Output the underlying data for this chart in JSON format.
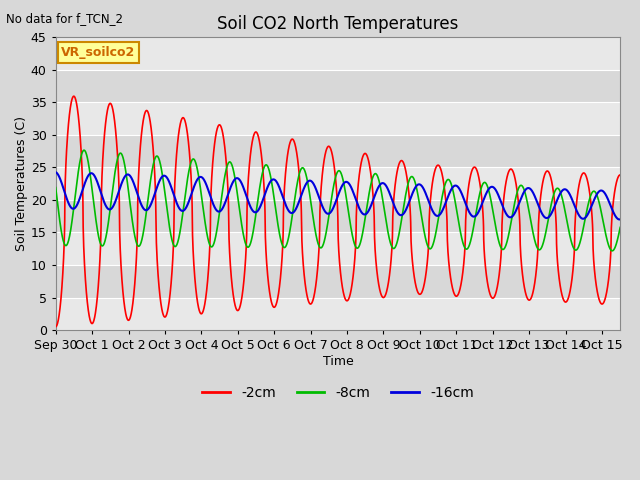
{
  "title": "Soil CO2 North Temperatures",
  "subtitle": "No data for f_TCN_2",
  "xlabel": "Time",
  "ylabel": "Soil Temperatures (C)",
  "ylim": [
    0,
    45
  ],
  "background_color": "#d8d8d8",
  "plot_bg_color": "#e8e8e8",
  "legend_entries": [
    "-2cm",
    "-8cm",
    "-16cm"
  ],
  "legend_colors": [
    "#ff0000",
    "#00bb00",
    "#0000dd"
  ],
  "annotation_box": "VR_soilco2",
  "x_tick_labels": [
    "Sep 30",
    "Oct 1",
    "Oct 2",
    "Oct 3",
    "Oct 4",
    "Oct 5",
    "Oct 6",
    "Oct 7",
    "Oct 8",
    "Oct 9",
    "Oct 10",
    "Oct 11",
    "Oct 12",
    "Oct 13",
    "Oct 14",
    "Oct 15"
  ],
  "yticks": [
    0,
    5,
    10,
    15,
    20,
    25,
    30,
    35,
    40,
    45
  ],
  "band_color_light": "#e8e8e8",
  "band_color_dark": "#d8d8d8"
}
